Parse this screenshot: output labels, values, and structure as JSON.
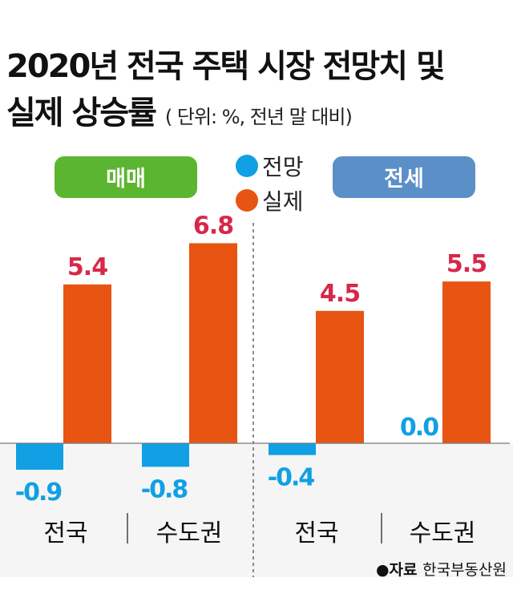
{
  "chart_data": {
    "type": "bar",
    "title": "2020년 전국 주택 시장 전망치 및",
    "title_line2": "실제 상승률",
    "unit_note": "( 단위: %, 전년 말 대비)",
    "groups": [
      {
        "name": "매매",
        "color": "#5cb531",
        "categories": [
          "전국",
          "수도권"
        ]
      },
      {
        "name": "전세",
        "color": "#5b8fc7",
        "categories": [
          "전국",
          "수도권"
        ]
      }
    ],
    "categories": [
      "전국",
      "수도권",
      "전국",
      "수도권"
    ],
    "series": [
      {
        "name": "전망",
        "color": "#11a0e3",
        "values": [
          -0.9,
          -0.8,
          -0.4,
          0.0
        ],
        "labels": [
          "-0.9",
          "-0.8",
          "-0.4",
          "0.0"
        ]
      },
      {
        "name": "실제",
        "color": "#e85412",
        "values": [
          5.4,
          6.8,
          4.5,
          5.5
        ],
        "labels": [
          "5.4",
          "6.8",
          "4.5",
          "5.5"
        ],
        "label_color": "#d7284a"
      }
    ],
    "ylim": [
      -1,
      7.2
    ],
    "legend": "top-center",
    "grid": false
  },
  "source": {
    "label": "●자료",
    "value": "한국부동산원"
  }
}
